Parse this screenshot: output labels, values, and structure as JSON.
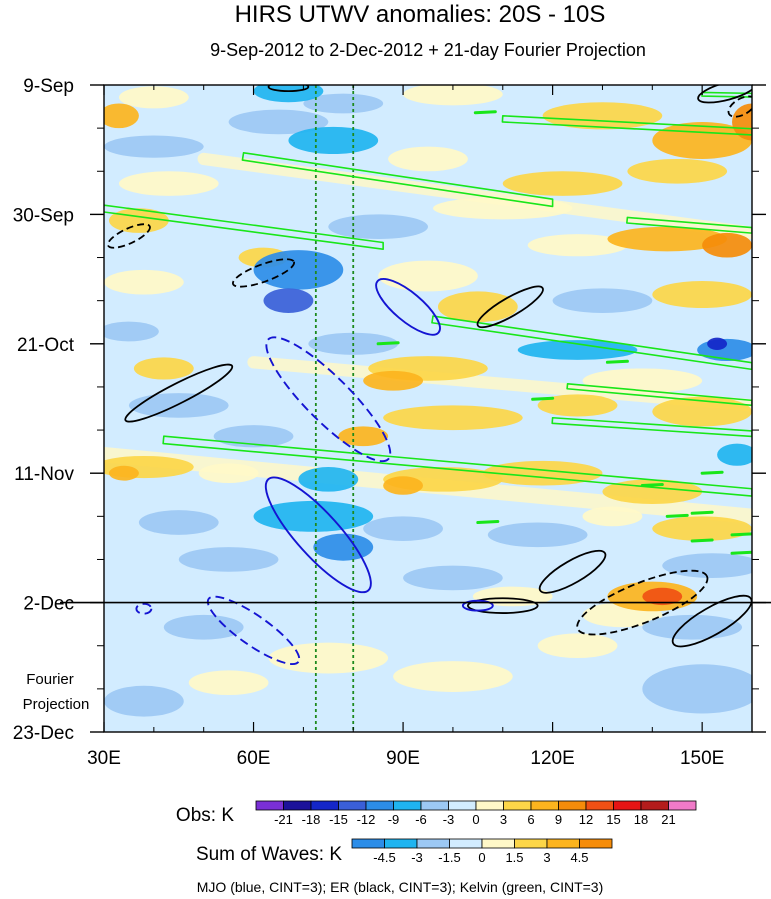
{
  "chart_data": {
    "type": "heatmap",
    "title": "HIRS UTWV anomalies: 20S - 10S",
    "subtitle": "9-Sep-2012 to 2-Dec-2012 + 21-day Fourier Projection",
    "x_axis": {
      "unit": "longitude (degrees East)",
      "range": [
        30,
        160
      ],
      "ticks": [
        30,
        60,
        90,
        120,
        150
      ],
      "tick_labels": [
        "30E",
        "60E",
        "90E",
        "120E",
        "150E"
      ]
    },
    "y_axis": {
      "unit": "days since 9-Sep-2012 (downward)",
      "range": [
        0,
        105
      ],
      "ticks": [
        0,
        21,
        42,
        63,
        84,
        105
      ],
      "tick_labels": [
        "9-Sep",
        "30-Sep",
        "21-Oct",
        "11-Nov",
        "2-Dec",
        "23-Dec"
      ]
    },
    "observation_end": {
      "label": "2-Dec",
      "day": 84
    },
    "projection_label": [
      "Fourier",
      "Projection"
    ],
    "reference_longitudes_dotted": [
      72.5,
      80
    ],
    "obs_colorbar": {
      "label": "Obs: K",
      "levels": [
        "-21",
        "-18",
        "-15",
        "-12",
        "-9",
        "-6",
        "-3",
        "0",
        "3",
        "6",
        "9",
        "12",
        "15",
        "18",
        "21"
      ],
      "colors": [
        "#7a2fd6",
        "#1c129a",
        "#1426c8",
        "#3a5fd8",
        "#2c8de8",
        "#1fb4f0",
        "#9cc8f4",
        "#d2ecff",
        "#fff8c8",
        "#fcd648",
        "#fcb41e",
        "#f58c0a",
        "#f05014",
        "#e61414",
        "#b41c1c",
        "#f07ac8"
      ]
    },
    "waves_colorbar": {
      "label": "Sum of Waves: K",
      "levels": [
        "-4.5",
        "-3",
        "-1.5",
        "0",
        "1.5",
        "3",
        "4.5"
      ],
      "colors": [
        "#2c8de8",
        "#1fb4f0",
        "#9cc8f4",
        "#d2ecff",
        "#fff8c8",
        "#fcd648",
        "#fcb41e",
        "#f58c0a"
      ]
    },
    "contour_legend": "MJO (blue, CINT=3); ER (black, CINT=3); Kelvin (green, CINT=3)",
    "blobs": [
      {
        "lon": 67,
        "day": 1,
        "rx": 7,
        "ry": 1.8,
        "v": -6
      },
      {
        "lon": 78,
        "day": 3,
        "rx": 8,
        "ry": 1.6,
        "v": -3
      },
      {
        "lon": 40,
        "day": 2,
        "rx": 7,
        "ry": 1.8,
        "v": 3
      },
      {
        "lon": 100,
        "day": 1.5,
        "rx": 10,
        "ry": 1.8,
        "v": 3
      },
      {
        "lon": 130,
        "day": 5,
        "rx": 12,
        "ry": 2.2,
        "v": 6
      },
      {
        "lon": 150,
        "day": 9,
        "rx": 10,
        "ry": 3,
        "v": 9
      },
      {
        "lon": 160,
        "day": 6,
        "rx": 4,
        "ry": 3,
        "v": 12
      },
      {
        "lon": 33,
        "day": 5,
        "rx": 4,
        "ry": 2,
        "v": 9
      },
      {
        "lon": 65,
        "day": 6,
        "rx": 10,
        "ry": 2,
        "v": -3
      },
      {
        "lon": 76,
        "day": 9,
        "rx": 9,
        "ry": 2.2,
        "v": -6
      },
      {
        "lon": 40,
        "day": 10,
        "rx": 10,
        "ry": 1.8,
        "v": -3
      },
      {
        "lon": 43,
        "day": 16,
        "rx": 10,
        "ry": 2,
        "v": 3
      },
      {
        "lon": 95,
        "day": 12,
        "rx": 8,
        "ry": 2,
        "v": 3
      },
      {
        "lon": 122,
        "day": 16,
        "rx": 12,
        "ry": 2,
        "v": 6
      },
      {
        "lon": 145,
        "day": 14,
        "rx": 10,
        "ry": 2,
        "v": 6
      },
      {
        "lon": 110,
        "day": 20,
        "rx": 14,
        "ry": 1.8,
        "v": 3
      },
      {
        "lon": 37,
        "day": 22,
        "rx": 6,
        "ry": 2,
        "v": 6
      },
      {
        "lon": 85,
        "day": 23,
        "rx": 10,
        "ry": 2,
        "v": -3
      },
      {
        "lon": 143,
        "day": 25,
        "rx": 12,
        "ry": 2,
        "v": 9
      },
      {
        "lon": 155,
        "day": 26,
        "rx": 5,
        "ry": 2,
        "v": 12
      },
      {
        "lon": 125,
        "day": 26,
        "rx": 10,
        "ry": 1.8,
        "v": 3
      },
      {
        "lon": 69,
        "day": 30,
        "rx": 9,
        "ry": 3.2,
        "v": -9
      },
      {
        "lon": 67,
        "day": 35,
        "rx": 5,
        "ry": 2,
        "v": -12
      },
      {
        "lon": 62,
        "day": 28,
        "rx": 5,
        "ry": 1.6,
        "v": 6
      },
      {
        "lon": 38,
        "day": 32,
        "rx": 8,
        "ry": 2,
        "v": 3
      },
      {
        "lon": 95,
        "day": 31,
        "rx": 10,
        "ry": 2.5,
        "v": 3
      },
      {
        "lon": 105,
        "day": 36,
        "rx": 8,
        "ry": 2.5,
        "v": 6
      },
      {
        "lon": 130,
        "day": 35,
        "rx": 10,
        "ry": 2,
        "v": -3
      },
      {
        "lon": 150,
        "day": 34,
        "rx": 10,
        "ry": 2.2,
        "v": 6
      },
      {
        "lon": 125,
        "day": 43,
        "rx": 12,
        "ry": 1.6,
        "v": -6
      },
      {
        "lon": 155,
        "day": 43,
        "rx": 6,
        "ry": 1.8,
        "v": -9
      },
      {
        "lon": 153,
        "day": 42,
        "rx": 2,
        "ry": 1,
        "v": -15
      },
      {
        "lon": 80,
        "day": 42,
        "rx": 9,
        "ry": 1.8,
        "v": -3
      },
      {
        "lon": 35,
        "day": 40,
        "rx": 6,
        "ry": 1.6,
        "v": -3
      },
      {
        "lon": 42,
        "day": 46,
        "rx": 6,
        "ry": 1.8,
        "v": 6
      },
      {
        "lon": 95,
        "day": 46,
        "rx": 12,
        "ry": 2,
        "v": 6
      },
      {
        "lon": 88,
        "day": 48,
        "rx": 6,
        "ry": 1.6,
        "v": 9
      },
      {
        "lon": 138,
        "day": 48,
        "rx": 12,
        "ry": 2,
        "v": 3
      },
      {
        "lon": 45,
        "day": 52,
        "rx": 10,
        "ry": 2,
        "v": -3
      },
      {
        "lon": 100,
        "day": 54,
        "rx": 14,
        "ry": 2,
        "v": 6
      },
      {
        "lon": 125,
        "day": 52,
        "rx": 8,
        "ry": 1.8,
        "v": 6
      },
      {
        "lon": 150,
        "day": 53,
        "rx": 10,
        "ry": 2.4,
        "v": 6
      },
      {
        "lon": 82,
        "day": 57,
        "rx": 5,
        "ry": 1.6,
        "v": 9
      },
      {
        "lon": 60,
        "day": 57,
        "rx": 8,
        "ry": 1.8,
        "v": -3
      },
      {
        "lon": 38,
        "day": 62,
        "rx": 10,
        "ry": 1.8,
        "v": 6
      },
      {
        "lon": 34,
        "day": 63,
        "rx": 3,
        "ry": 1.2,
        "v": 9
      },
      {
        "lon": 55,
        "day": 63,
        "rx": 6,
        "ry": 1.6,
        "v": 3
      },
      {
        "lon": 75,
        "day": 64,
        "rx": 6,
        "ry": 2,
        "v": -6
      },
      {
        "lon": 98,
        "day": 64,
        "rx": 12,
        "ry": 2,
        "v": 6
      },
      {
        "lon": 90,
        "day": 65,
        "rx": 4,
        "ry": 1.5,
        "v": 9
      },
      {
        "lon": 118,
        "day": 63,
        "rx": 12,
        "ry": 2,
        "v": 6
      },
      {
        "lon": 140,
        "day": 66,
        "rx": 10,
        "ry": 2,
        "v": 6
      },
      {
        "lon": 157,
        "day": 60,
        "rx": 4,
        "ry": 1.8,
        "v": -6
      },
      {
        "lon": 72,
        "day": 70,
        "rx": 12,
        "ry": 2.5,
        "v": -6
      },
      {
        "lon": 78,
        "day": 75,
        "rx": 6,
        "ry": 2.2,
        "v": -9
      },
      {
        "lon": 90,
        "day": 72,
        "rx": 8,
        "ry": 2,
        "v": -3
      },
      {
        "lon": 45,
        "day": 71,
        "rx": 8,
        "ry": 2,
        "v": -3
      },
      {
        "lon": 117,
        "day": 73,
        "rx": 10,
        "ry": 2,
        "v": -3
      },
      {
        "lon": 150,
        "day": 72,
        "rx": 10,
        "ry": 2,
        "v": 6
      },
      {
        "lon": 132,
        "day": 70,
        "rx": 6,
        "ry": 1.6,
        "v": 3
      },
      {
        "lon": 55,
        "day": 77,
        "rx": 10,
        "ry": 2,
        "v": -3
      },
      {
        "lon": 100,
        "day": 80,
        "rx": 10,
        "ry": 2,
        "v": -3
      },
      {
        "lon": 112,
        "day": 83,
        "rx": 8,
        "ry": 1.6,
        "v": 3
      },
      {
        "lon": 152,
        "day": 78,
        "rx": 10,
        "ry": 2,
        "v": -3
      },
      {
        "lon": 140,
        "day": 83,
        "rx": 9,
        "ry": 2.4,
        "v": 9
      },
      {
        "lon": 142,
        "day": 83,
        "rx": 4,
        "ry": 1.4,
        "v": 15
      },
      {
        "lon": 134,
        "day": 86,
        "rx": 8,
        "ry": 2,
        "v": 3
      },
      {
        "lon": 148,
        "day": 88,
        "rx": 10,
        "ry": 2,
        "v": -3
      },
      {
        "lon": 50,
        "day": 88,
        "rx": 8,
        "ry": 2,
        "v": -3
      },
      {
        "lon": 75,
        "day": 93,
        "rx": 12,
        "ry": 2.5,
        "v": 3
      },
      {
        "lon": 55,
        "day": 97,
        "rx": 8,
        "ry": 2,
        "v": 3
      },
      {
        "lon": 100,
        "day": 96,
        "rx": 12,
        "ry": 2.5,
        "v": 3
      },
      {
        "lon": 125,
        "day": 91,
        "rx": 8,
        "ry": 2,
        "v": 3
      },
      {
        "lon": 150,
        "day": 98,
        "rx": 12,
        "ry": 4,
        "v": -3
      },
      {
        "lon": 38,
        "day": 100,
        "rx": 8,
        "ry": 2.5,
        "v": -3
      }
    ],
    "bands": [
      {
        "lon0": 30,
        "day0": 60,
        "lon1": 160,
        "day1": 70,
        "v": 3,
        "w": 2.5
      },
      {
        "lon0": 50,
        "day0": 12,
        "lon1": 160,
        "day1": 24,
        "v": 3,
        "w": 2
      },
      {
        "lon0": 60,
        "day0": 45,
        "lon1": 160,
        "day1": 52,
        "v": 3,
        "w": 2
      }
    ],
    "mjo_contours": [
      {
        "lon": 91,
        "day": 36,
        "rx": 8,
        "ry": 2.3,
        "rot": 40,
        "dashed": false
      },
      {
        "lon": 75,
        "day": 51,
        "rx": 17,
        "ry": 3.6,
        "rot": 45,
        "dashed": true
      },
      {
        "lon": 73,
        "day": 73,
        "rx": 15,
        "ry": 3.5,
        "rot": 48,
        "dashed": false
      },
      {
        "lon": 60,
        "day": 88.5,
        "rx": 11,
        "ry": 2.4,
        "rot": 35,
        "dashed": true
      },
      {
        "lon": 38,
        "day": 85,
        "rx": 1.5,
        "ry": 0.8,
        "rot": 0,
        "dashed": true
      },
      {
        "lon": 105,
        "day": 84.5,
        "rx": 3,
        "ry": 0.8,
        "rot": 0,
        "dashed": false
      }
    ],
    "er_contours": [
      {
        "lon": 67,
        "day": 0.3,
        "rx": 4,
        "ry": 0.7,
        "rot": 0,
        "dashed": false
      },
      {
        "lon": 155,
        "day": 1,
        "rx": 6,
        "ry": 1.4,
        "rot": -15,
        "dashed": false
      },
      {
        "lon": 158,
        "day": 3.5,
        "rx": 3,
        "ry": 1.3,
        "rot": -30,
        "dashed": true
      },
      {
        "lon": 35,
        "day": 24.5,
        "rx": 4.6,
        "ry": 1.2,
        "rot": -25,
        "dashed": true
      },
      {
        "lon": 62,
        "day": 30.5,
        "rx": 6.5,
        "ry": 1.4,
        "rot": -20,
        "dashed": true
      },
      {
        "lon": 111.5,
        "day": 36,
        "rx": 7.5,
        "ry": 1.5,
        "rot": -30,
        "dashed": false
      },
      {
        "lon": 45,
        "day": 50,
        "rx": 12,
        "ry": 1.6,
        "rot": -27,
        "dashed": false
      },
      {
        "lon": 124,
        "day": 79,
        "rx": 7.5,
        "ry": 1.8,
        "rot": -30,
        "dashed": false
      },
      {
        "lon": 138,
        "day": 84,
        "rx": 14,
        "ry": 3.2,
        "rot": -22,
        "dashed": true
      },
      {
        "lon": 110,
        "day": 84.5,
        "rx": 7,
        "ry": 1.2,
        "rot": 0,
        "dashed": false
      },
      {
        "lon": 152,
        "day": 87,
        "rx": 9,
        "ry": 2.2,
        "rot": -30,
        "dashed": false
      }
    ],
    "kelvin_contours": [
      {
        "lon0": 30,
        "day0": 19.5,
        "lon1": 86,
        "day1": 26,
        "w": 1.1
      },
      {
        "lon0": 58,
        "day0": 11,
        "lon1": 120,
        "day1": 19,
        "w": 1.2
      },
      {
        "lon0": 110,
        "day0": 5,
        "lon1": 160,
        "day1": 7.5,
        "w": 1
      },
      {
        "lon0": 150,
        "day0": 1.2,
        "lon1": 160,
        "day1": 1.6,
        "w": 0.6
      },
      {
        "lon0": 96,
        "day0": 37.5,
        "lon1": 160,
        "day1": 45.5,
        "w": 1.1
      },
      {
        "lon0": 42,
        "day0": 57,
        "lon1": 160,
        "day1": 66,
        "w": 1.2
      },
      {
        "lon0": 135,
        "day0": 21.5,
        "lon1": 160,
        "day1": 23.5,
        "w": 0.9
      },
      {
        "lon0": 120,
        "day0": 54,
        "lon1": 160,
        "day1": 56.5,
        "w": 0.9
      },
      {
        "lon0": 123,
        "day0": 48.5,
        "lon1": 160,
        "day1": 51.5,
        "w": 0.8
      }
    ],
    "kelvin_dashes": [
      {
        "lon": 106.5,
        "day": 4.5
      },
      {
        "lon": 133,
        "day": 45
      },
      {
        "lon": 140,
        "day": 65
      },
      {
        "lon": 145,
        "day": 70
      },
      {
        "lon": 158,
        "day": 73
      },
      {
        "lon": 150,
        "day": 69.5
      },
      {
        "lon": 150,
        "day": 74
      },
      {
        "lon": 158,
        "day": 76
      },
      {
        "lon": 87,
        "day": 42
      },
      {
        "lon": 118,
        "day": 51
      },
      {
        "lon": 107,
        "day": 71
      },
      {
        "lon": 152,
        "day": 63
      }
    ]
  }
}
